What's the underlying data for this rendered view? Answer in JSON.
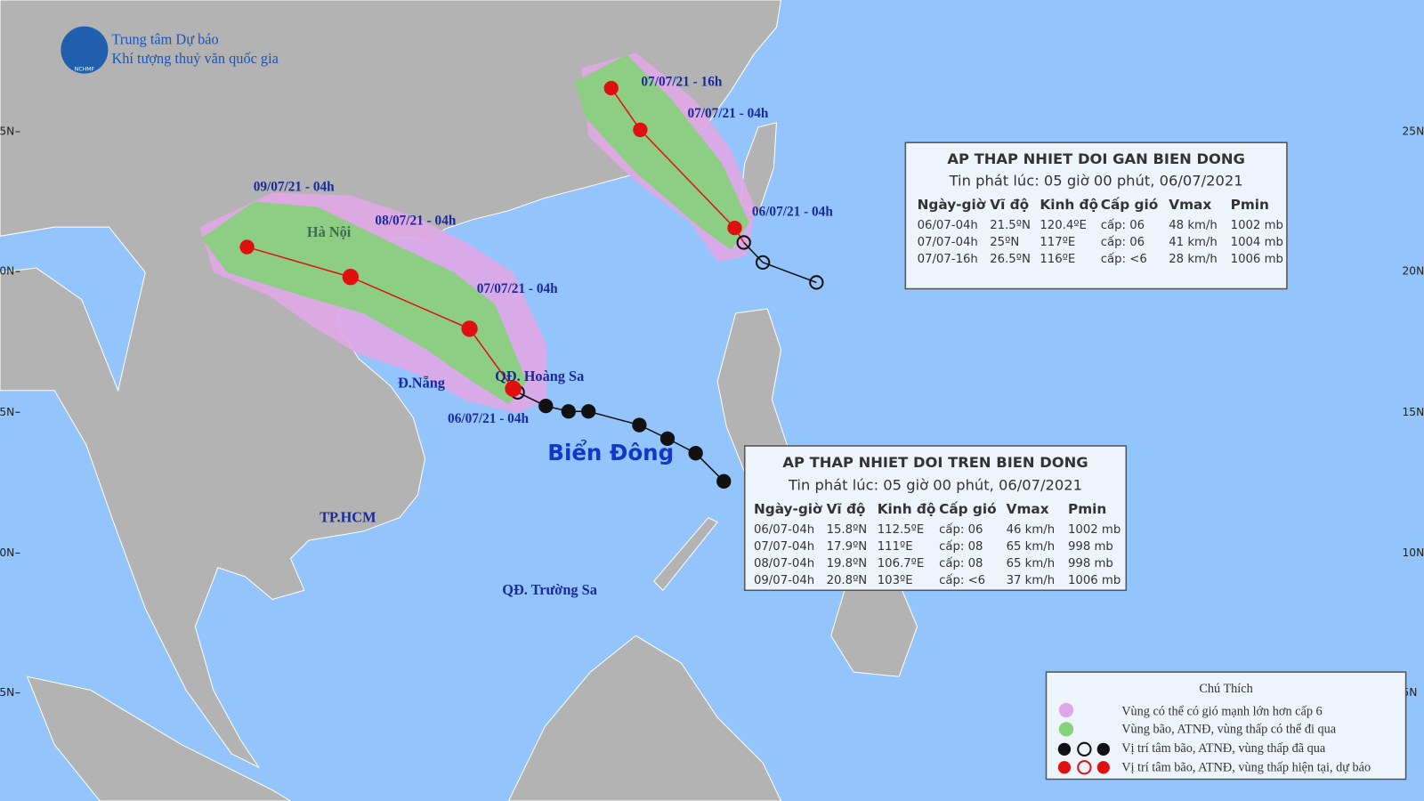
{
  "header": {
    "line1": "Trung tâm Dự báo",
    "line2": "Khí tượng thuỷ văn quốc gia",
    "logo": "NCHMF"
  },
  "lat_labels": [
    "25N",
    "20N",
    "15N",
    "10N",
    "5N"
  ],
  "places": [
    "Hà Nội",
    "Đ.Nẵng",
    "QĐ. Hoàng Sa",
    "TP.HCM",
    "QĐ. Trường Sa",
    "Biển Đông"
  ],
  "track_labels": [
    "07/07/21 - 16h",
    "07/07/21 - 04h",
    "06/07/21 - 04h",
    "09/07/21 - 04h",
    "08/07/21 - 04h",
    "07/07/21 - 04h",
    "06/07/21 - 04h"
  ],
  "box1": {
    "title": "AP THAP NHIET DOI GAN BIEN DONG",
    "issued": "Tin phát lúc: 05 giờ 00 phút, 06/07/2021",
    "columns": [
      "Ngày-giờ",
      "Vĩ độ",
      "Kinh độ",
      "Cấp gió",
      "Vmax",
      "Pmin"
    ],
    "rows": [
      [
        "06/07-04h",
        "21.5ºN",
        "120.4ºE",
        "cấp: 06",
        "48 km/h",
        "1002 mb"
      ],
      [
        "07/07-04h",
        "25ºN",
        "117ºE",
        "cấp: 06",
        "41 km/h",
        "1004 mb"
      ],
      [
        "07/07-16h",
        "26.5ºN",
        "116ºE",
        "cấp: <6",
        "28 km/h",
        "1006 mb"
      ]
    ]
  },
  "box2": {
    "title": "AP THAP NHIET DOI TREN BIEN DONG",
    "issued": "Tin phát lúc: 05 giờ 00 phút, 06/07/2021",
    "columns": [
      "Ngày-giờ",
      "Vĩ độ",
      "Kinh độ",
      "Cấp gió",
      "Vmax",
      "Pmin"
    ],
    "rows": [
      [
        "06/07-04h",
        "15.8ºN",
        "112.5ºE",
        "cấp: 06",
        "46 km/h",
        "1002 mb"
      ],
      [
        "07/07-04h",
        "17.9ºN",
        "111ºE",
        "cấp: 08",
        "65 km/h",
        "998 mb"
      ],
      [
        "08/07-04h",
        "19.8ºN",
        "106.7ºE",
        "cấp: 08",
        "65 km/h",
        "998 mb"
      ],
      [
        "09/07-04h",
        "20.8ºN",
        "103ºE",
        "cấp: <6",
        "37 km/h",
        "1006 mb"
      ]
    ]
  },
  "legend": {
    "title": "Chú Thích",
    "items": [
      "Vùng có thể có gió mạnh lớn hơn cấp 6",
      "Vùng bão, ATNĐ, vùng thấp có thể đi qua",
      "Vị trí tâm bão, ATNĐ, vùng thấp đã qua",
      "Vị trí tâm bão, ATNĐ, vùng thấp hiện tại, dự báo"
    ]
  }
}
